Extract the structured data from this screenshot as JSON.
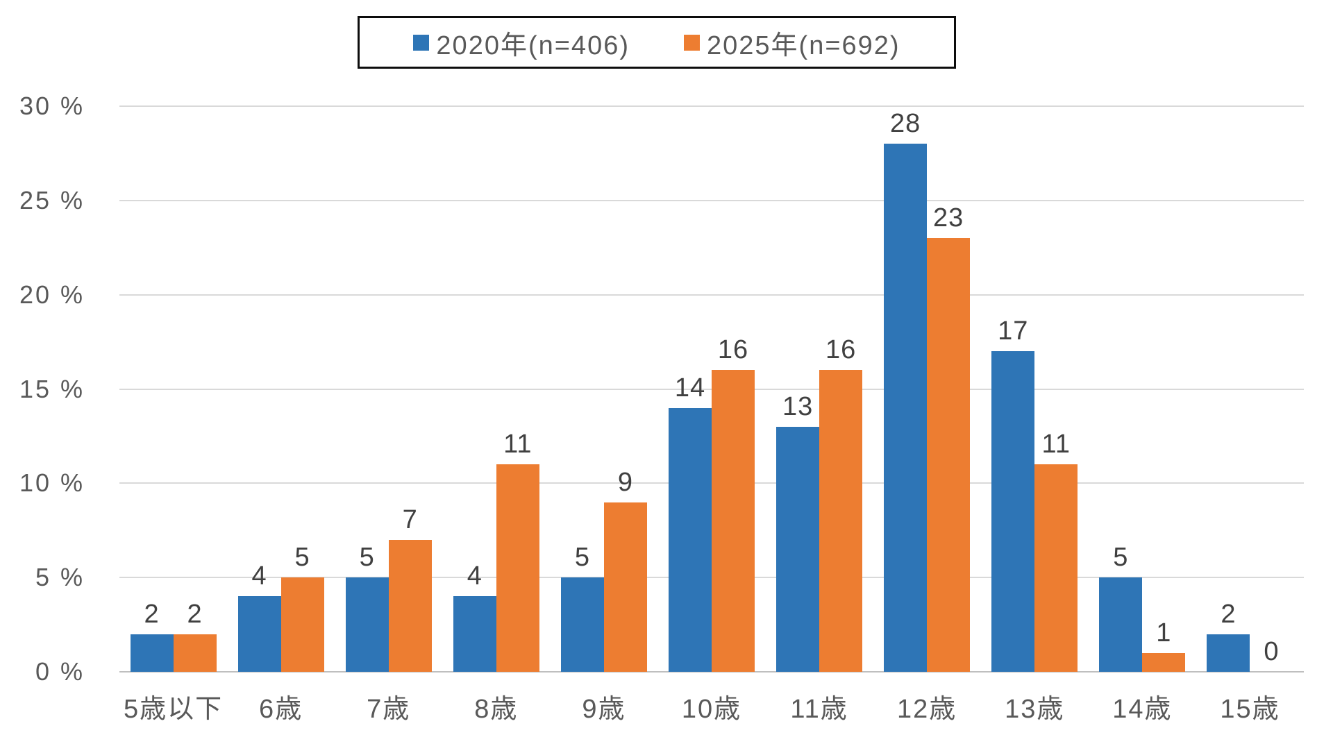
{
  "chart_data": {
    "type": "bar",
    "title": "",
    "categories": [
      "5歳以下",
      "6歳",
      "7歳",
      "8歳",
      "9歳",
      "10歳",
      "11歳",
      "12歳",
      "13歳",
      "14歳",
      "15歳"
    ],
    "series": [
      {
        "name": "2020年(n=406)",
        "color": "#2E75B6",
        "values": [
          2,
          4,
          5,
          4,
          5,
          14,
          13,
          28,
          17,
          5,
          2
        ]
      },
      {
        "name": "2025年(n=692)",
        "color": "#ED7D31",
        "values": [
          2,
          5,
          7,
          11,
          9,
          16,
          16,
          23,
          11,
          1,
          0
        ]
      }
    ],
    "yticks": [
      {
        "value": 0,
        "label": "0 %"
      },
      {
        "value": 5,
        "label": "5 %"
      },
      {
        "value": 10,
        "label": "10 %"
      },
      {
        "value": 15,
        "label": "15 %"
      },
      {
        "value": 20,
        "label": "20 %"
      },
      {
        "value": 25,
        "label": "25 %"
      },
      {
        "value": 30,
        "label": "30 %"
      }
    ],
    "ylim": [
      0,
      30
    ],
    "grid": true,
    "data_labels": true,
    "legend_position": "top"
  },
  "colors": {
    "series_2020": "#2E75B6",
    "series_2025": "#ED7D31",
    "gridline": "#D9D9D9",
    "axis_line": "#BFBFBF",
    "tick_text": "#595959",
    "data_label_text": "#404040",
    "legend_border": "#0D0D0D",
    "background": "#FFFFFF"
  }
}
